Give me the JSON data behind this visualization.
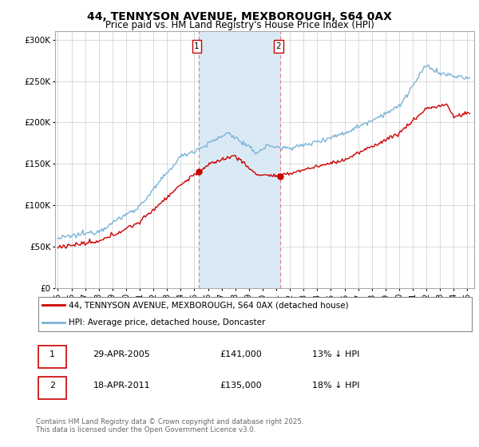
{
  "title": "44, TENNYSON AVENUE, MEXBOROUGH, S64 0AX",
  "subtitle": "Price paid vs. HM Land Registry's House Price Index (HPI)",
  "background_color": "#ffffff",
  "grid_color": "#cccccc",
  "hpi_color": "#7ab4d8",
  "price_color": "#cc0000",
  "shade_color": "#daeaf5",
  "transaction1_x": 2005.33,
  "transaction1_price": 141000,
  "transaction2_x": 2011.3,
  "transaction2_price": 135000,
  "ylim": [
    0,
    310000
  ],
  "xlim": [
    1994.8,
    2025.5
  ],
  "yticks": [
    0,
    50000,
    100000,
    150000,
    200000,
    250000,
    300000
  ],
  "ytick_labels": [
    "£0",
    "£50K",
    "£100K",
    "£150K",
    "£200K",
    "£250K",
    "£300K"
  ],
  "legend1": "44, TENNYSON AVENUE, MEXBOROUGH, S64 0AX (detached house)",
  "legend2": "HPI: Average price, detached house, Doncaster",
  "table_entries": [
    {
      "num": "1",
      "date": "29-APR-2005",
      "price": "£141,000",
      "hpi": "13% ↓ HPI"
    },
    {
      "num": "2",
      "date": "18-APR-2011",
      "price": "£135,000",
      "hpi": "18% ↓ HPI"
    }
  ],
  "footnote": "Contains HM Land Registry data © Crown copyright and database right 2025.\nThis data is licensed under the Open Government Licence v3.0.",
  "xtick_years": [
    1995,
    1996,
    1997,
    1998,
    1999,
    2000,
    2001,
    2002,
    2003,
    2004,
    2005,
    2006,
    2007,
    2008,
    2009,
    2010,
    2011,
    2012,
    2013,
    2014,
    2015,
    2016,
    2017,
    2018,
    2019,
    2020,
    2021,
    2022,
    2023,
    2024,
    2025
  ]
}
